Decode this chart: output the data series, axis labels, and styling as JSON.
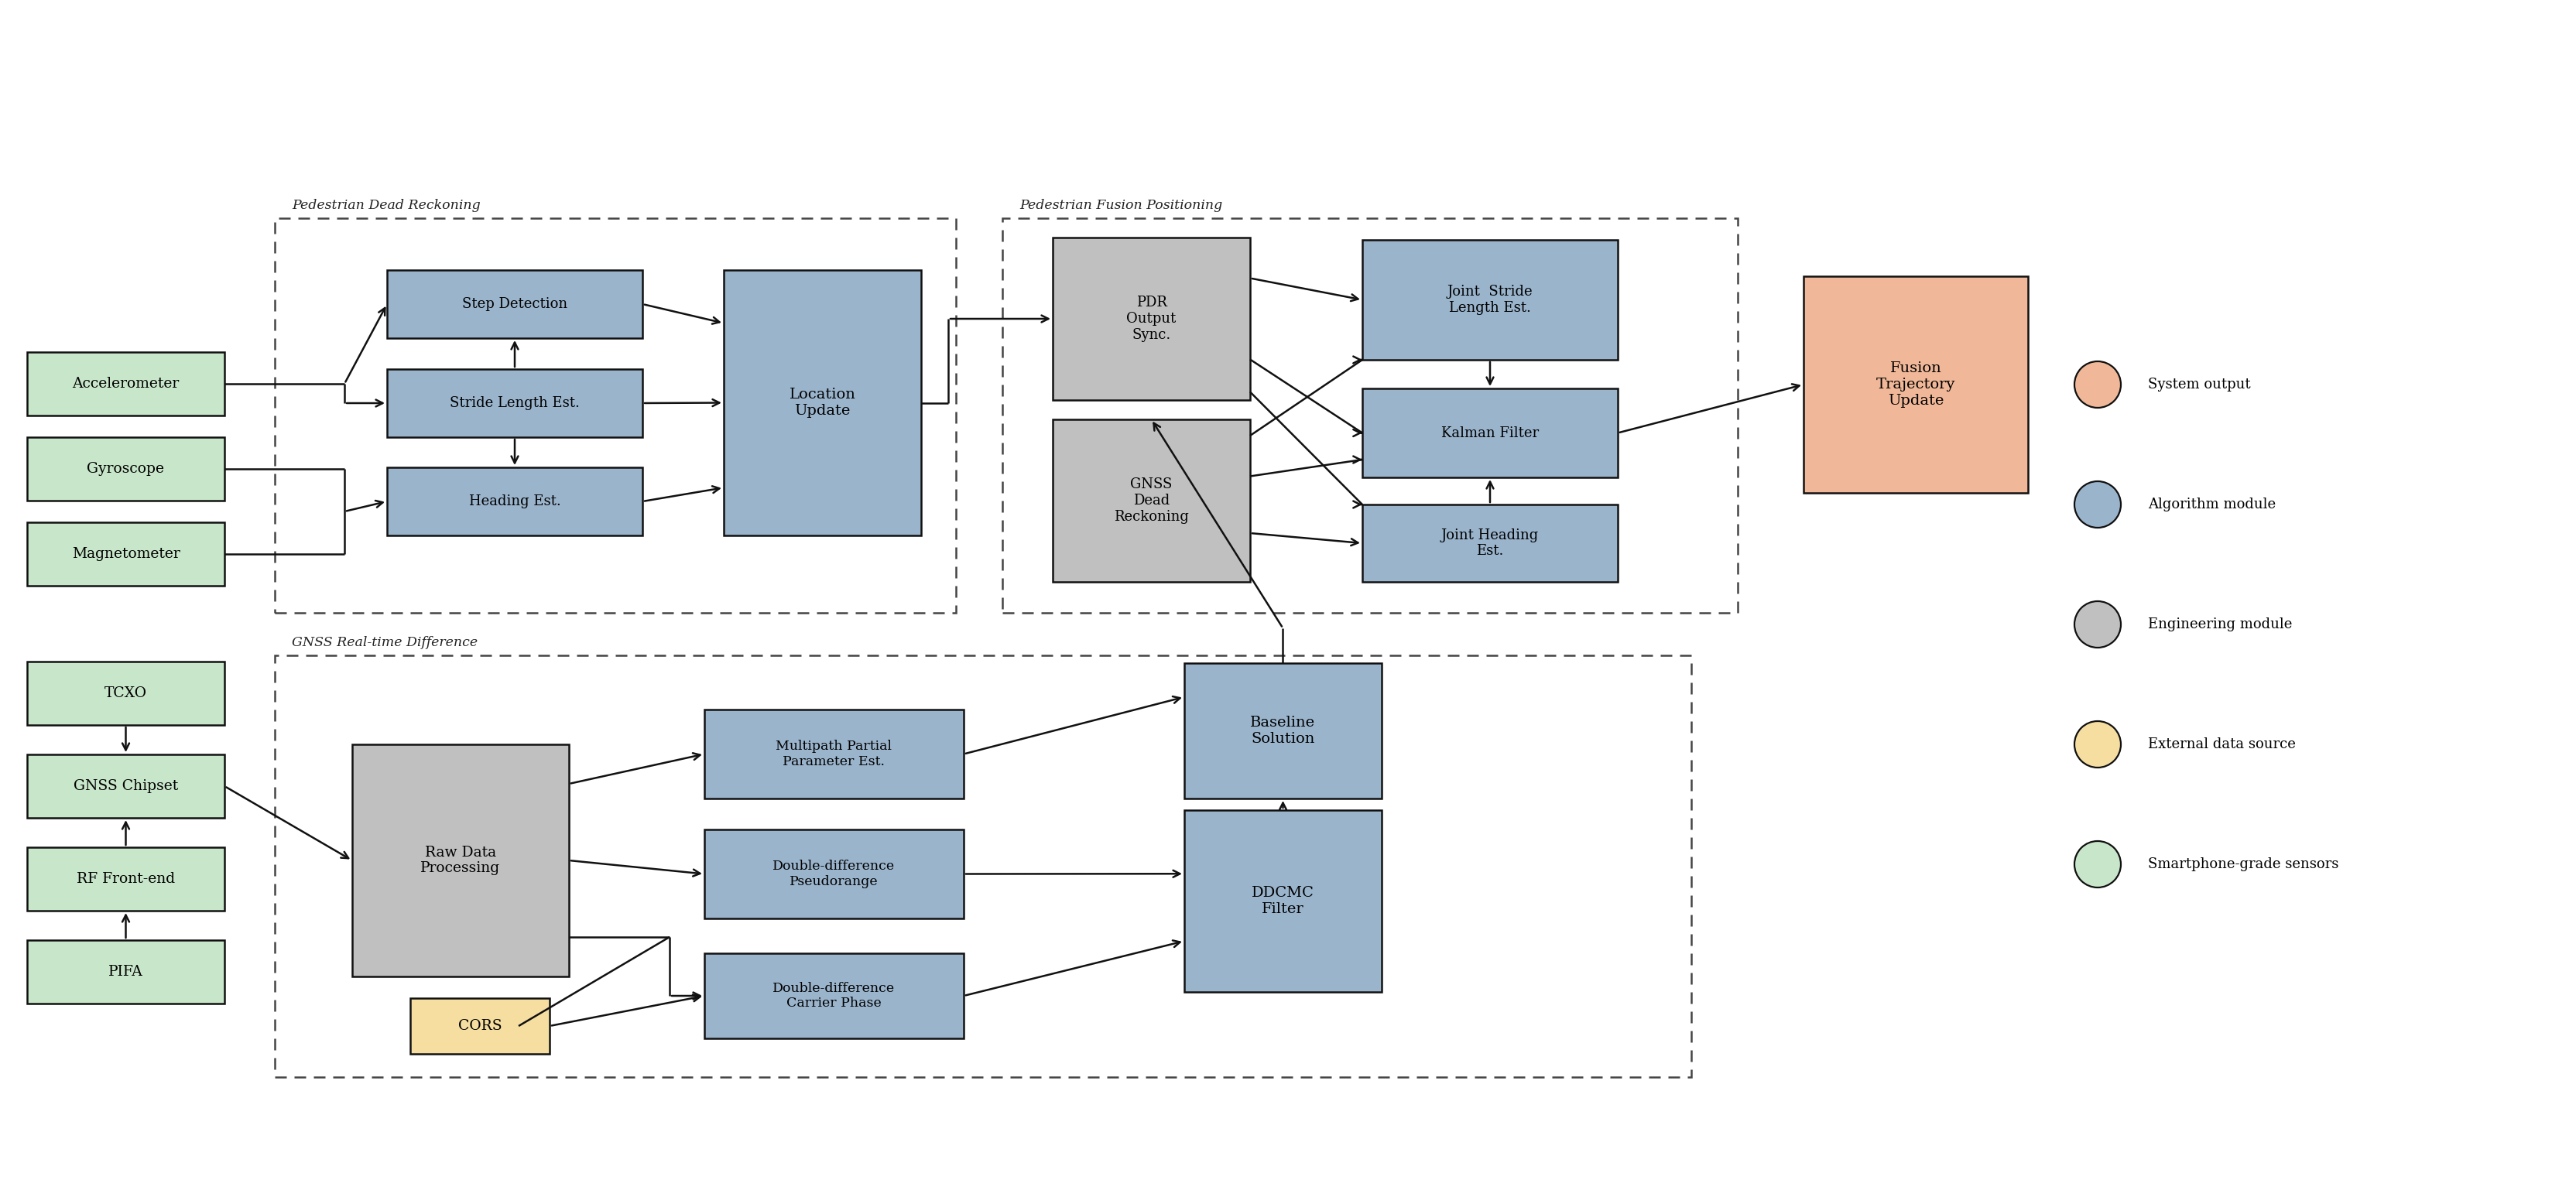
{
  "fig_width": 33.28,
  "fig_height": 15.47,
  "bg_color": "#ffffff",
  "colors": {
    "green": "#c8e6c9",
    "blue": "#9ab4cc",
    "gray": "#c0c0c0",
    "yellow": "#f5dea0",
    "orange": "#f0b898",
    "border": "#111111",
    "dashed": "#444444"
  },
  "legend_items": [
    {
      "label": "Smartphone-grade sensors",
      "color": "#c8e6c9"
    },
    {
      "label": "External data source",
      "color": "#f5dea0"
    },
    {
      "label": "Engineering module",
      "color": "#c0c0c0"
    },
    {
      "label": "Algorithm module",
      "color": "#9ab4cc"
    },
    {
      "label": "System output",
      "color": "#f0b898"
    }
  ]
}
